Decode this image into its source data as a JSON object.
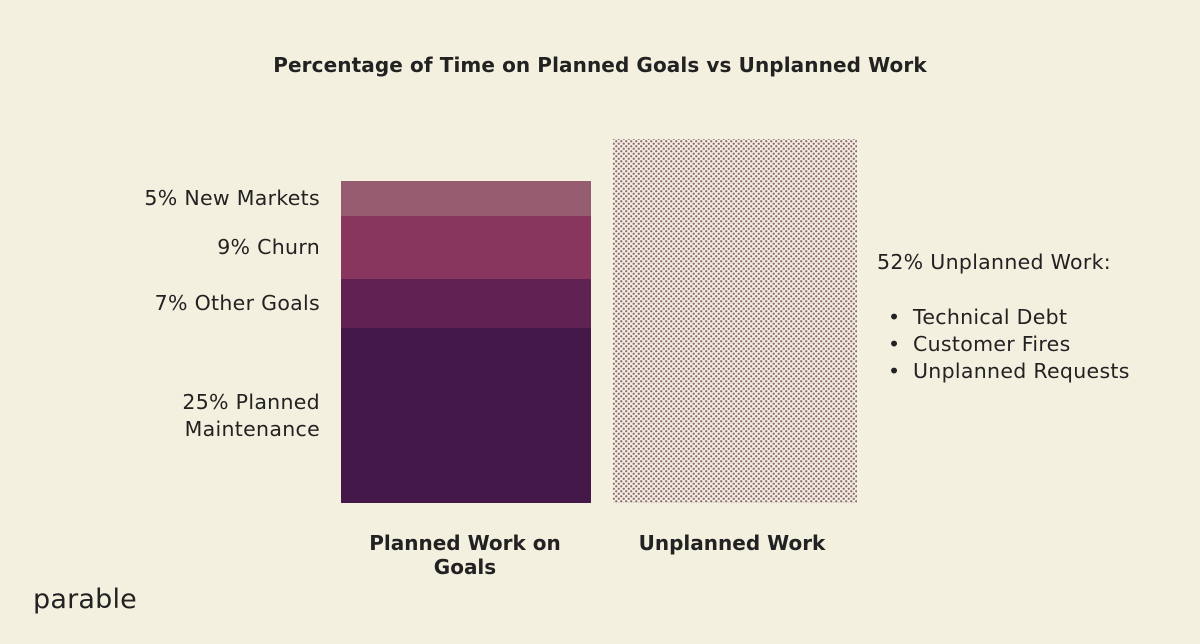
{
  "chart_data": {
    "type": "stacked-bar",
    "title": "Percentage of Time on Planned Goals vs Unplanned Work",
    "categories": [
      "Planned Work on Goals",
      "Unplanned Work"
    ],
    "planned_segments": [
      {
        "label": "25% Planned\nMaintenance",
        "value": 25,
        "color": "#45184a"
      },
      {
        "label": "7% Other Goals",
        "value": 7,
        "color": "#5f2252"
      },
      {
        "label": "9% Churn",
        "value": 9,
        "color": "#88365d"
      },
      {
        "label": "5% New Markets",
        "value": 5,
        "color": "#965d70"
      }
    ],
    "unplanned": {
      "value": 52,
      "pattern_color": "#8c6876",
      "note": "52% Unplanned Work:",
      "items": [
        "Technical Debt",
        "Customer Fires",
        "Unplanned Requests"
      ]
    },
    "ylim": [
      0,
      52
    ],
    "grid": false
  },
  "logo": "parable"
}
